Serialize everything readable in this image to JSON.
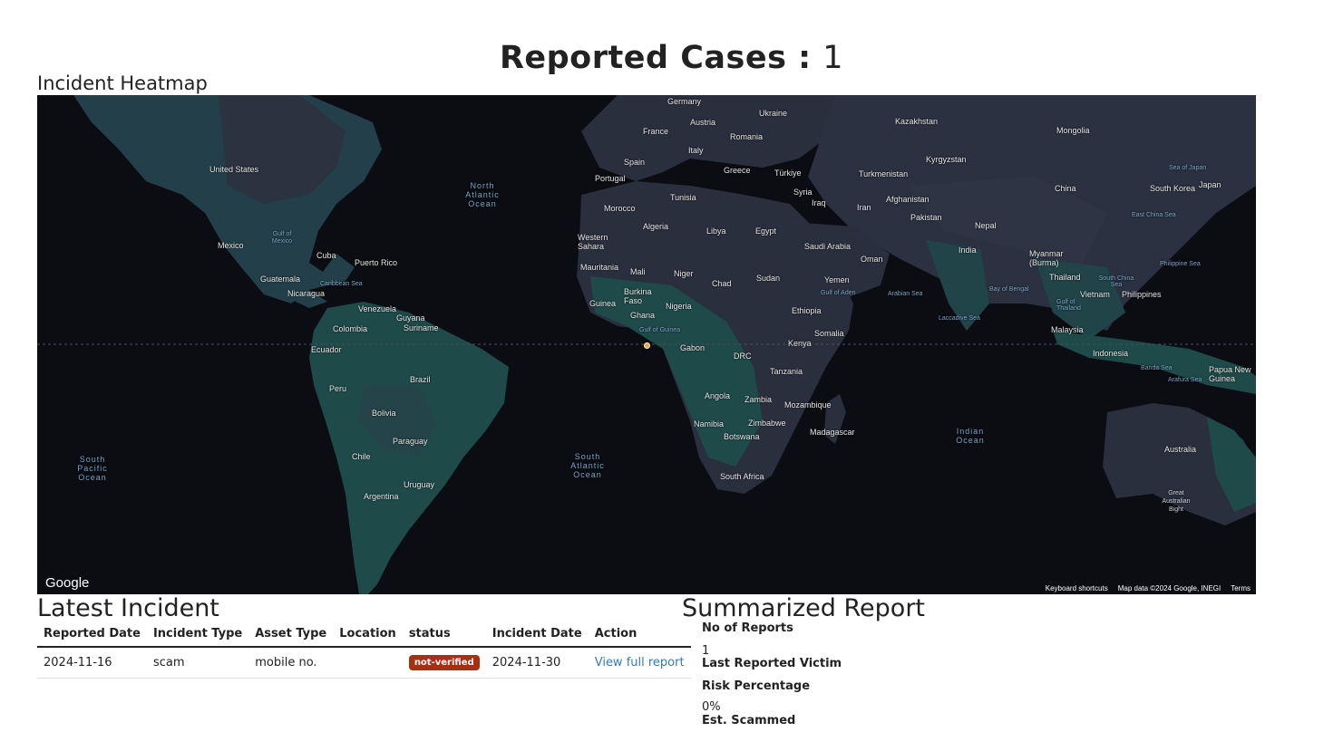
{
  "header": {
    "title_label": "Reported Cases :",
    "count": "1"
  },
  "heatmap": {
    "title": "Incident Heatmap",
    "google": "Google",
    "footer": {
      "shortcuts": "Keyboard shortcuts",
      "data": "Map data ©2024 Google, INEGI",
      "terms": "Terms"
    },
    "labels": {
      "germany": "Germany",
      "ukraine": "Ukraine",
      "kazakhstan": "Kazakhstan",
      "austria": "Austria",
      "france": "France",
      "romania": "Romania",
      "mongolia": "Mongolia",
      "italy": "Italy",
      "spain": "Spain",
      "greece": "Greece",
      "turkiye": "Türkiye",
      "turkmenistan": "Turkmenistan",
      "kyrgyzstan": "Kyrgyzstan",
      "portugal": "Portugal",
      "tunisia": "Tunisia",
      "syria": "Syria",
      "iraq": "Iraq",
      "afghanistan": "Afghanistan",
      "iran": "Iran",
      "pakistan": "Pakistan",
      "china": "China",
      "south_korea": "South Korea",
      "japan": "Japan",
      "sea_of_japan": "Sea of Japan",
      "morocco": "Morocco",
      "algeria": "Algeria",
      "libya": "Libya",
      "egypt": "Egypt",
      "nepal": "Nepal",
      "east_china_sea": "East China Sea",
      "western_sahara": "Western Sahara",
      "saudi_arabia": "Saudi Arabia",
      "india": "India",
      "myanmar": "Myanmar (Burma)",
      "mauritania": "Mauritania",
      "mali": "Mali",
      "niger": "Niger",
      "oman": "Oman",
      "philippine_sea": "Philippine Sea",
      "chad": "Chad",
      "sudan": "Sudan",
      "yemen": "Yemen",
      "thailand": "Thailand",
      "south_china_sea": "South China Sea",
      "burkina": "Burkina Faso",
      "gulf_of_aden": "Gulf of Aden",
      "arabian_sea": "Arabian Sea",
      "bay_of_bengal": "Bay of Bengal",
      "vietnam": "Vietnam",
      "philippines": "Philippines",
      "guinea": "Guinea",
      "nigeria": "Nigeria",
      "ethiopia": "Ethiopia",
      "gulf_of_thailand": "Gulf of Thailand",
      "ghana": "Ghana",
      "laccadive_sea": "Laccadive Sea",
      "gulf_of_guinea": "Gulf of Guinea",
      "somalia": "Somalia",
      "malaysia": "Malaysia",
      "gabon": "Gabon",
      "kenya": "Kenya",
      "indonesia": "Indonesia",
      "drc": "DRC",
      "tanzania": "Tanzania",
      "banda_sea": "Banda Sea",
      "papua": "Papua New Guinea",
      "arafura_sea": "Arafura Sea",
      "angola": "Angola",
      "zambia": "Zambia",
      "mozambique": "Mozambique",
      "namibia": "Namibia",
      "zimbabwe": "Zimbabwe",
      "madagascar": "Madagascar",
      "indian_ocean": "Indian Ocean",
      "botswana": "Botswana",
      "australia": "Australia",
      "south_africa": "South Africa",
      "great_australian_bight": "Great Australian Bight",
      "united_states": "United States",
      "north_atlantic": "North Atlantic Ocean",
      "gulf_of_mexico": "Gulf of Mexico",
      "mexico": "Mexico",
      "cuba": "Cuba",
      "puerto_rico": "Puerto Rico",
      "guatemala": "Guatemala",
      "caribbean_sea": "Caribbean Sea",
      "nicaragua": "Nicaragua",
      "venezuela": "Venezuela",
      "guyana": "Guyana",
      "suriname": "Suriname",
      "colombia": "Colombia",
      "ecuador": "Ecuador",
      "brazil": "Brazil",
      "peru": "Peru",
      "bolivia": "Bolivia",
      "south_pacific": "South Pacific Ocean",
      "south_atlantic": "South Atlantic Ocean",
      "paraguay": "Paraguay",
      "chile": "Chile",
      "uruguay": "Uruguay",
      "argentina": "Argentina"
    }
  },
  "latest_incident": {
    "title": "Latest Incident",
    "columns": [
      "Reported Date",
      "Incident Type",
      "Asset Type",
      "Location",
      "status",
      "Incident Date",
      "Action"
    ],
    "rows": [
      {
        "reported_date": "2024-11-16",
        "incident_type": "scam",
        "asset_type": "mobile no.",
        "location": "",
        "status": "not-verified",
        "incident_date": "2024-11-30",
        "action": "View full report"
      }
    ]
  },
  "summary": {
    "title": "Summarized Report",
    "no_of_reports_label": "No of Reports",
    "no_of_reports_value": "1",
    "last_victim_label": "Last Reported Victim",
    "risk_label": "Risk Percentage",
    "risk_value": "0%",
    "scammed_label": "Est. Scammed"
  },
  "colors": {
    "map_bg": "#0b0d12",
    "land": "#2a2f3e",
    "vegetation": "#1f4a4a",
    "badge": "#a6300f",
    "link": "#337ab7"
  }
}
